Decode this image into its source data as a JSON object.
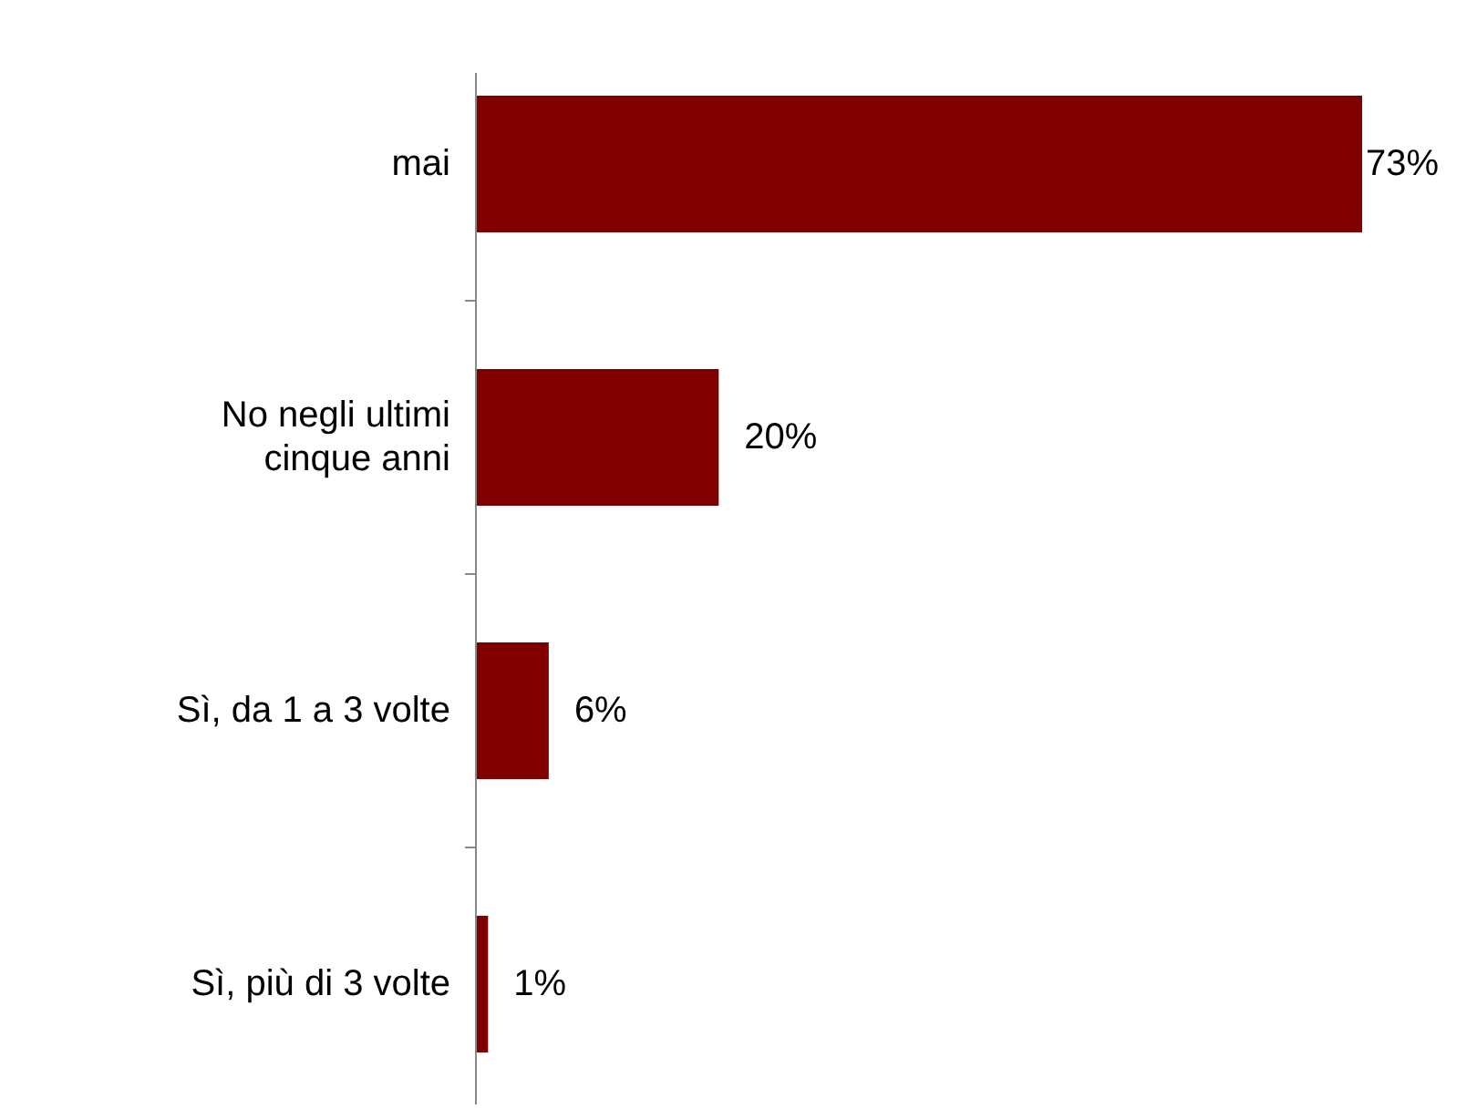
{
  "chart_data": {
    "type": "bar",
    "orientation": "horizontal",
    "categories": [
      "mai",
      "No negli ultimi cinque anni",
      "Sì, da 1 a 3 volte",
      "Sì, più di 3 volte"
    ],
    "values": [
      73,
      20,
      6,
      1
    ],
    "value_labels": [
      "73%",
      "20%",
      "6%",
      "1%"
    ],
    "color": "#800000"
  }
}
